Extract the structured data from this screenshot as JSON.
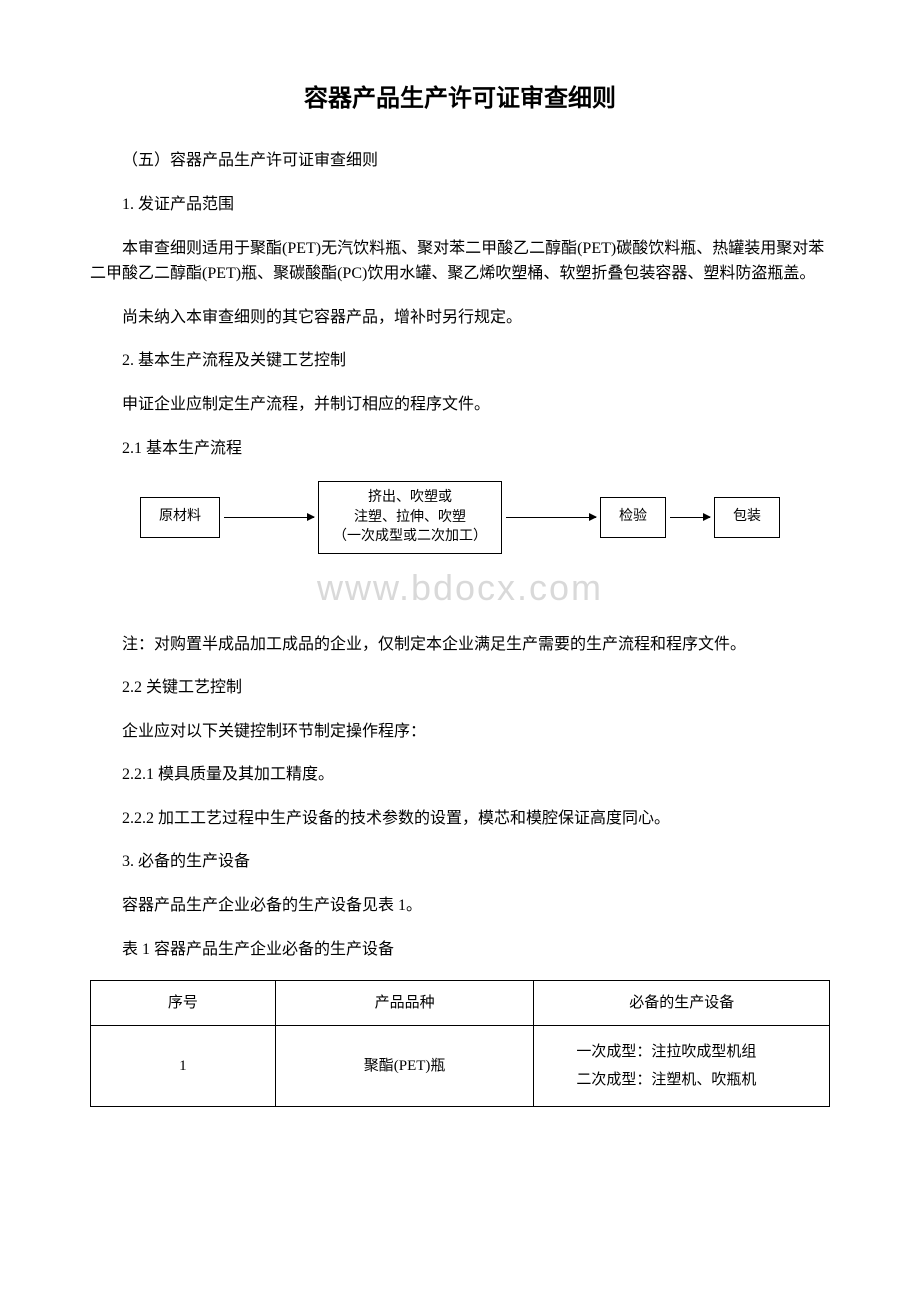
{
  "title": "容器产品生产许可证审查细则",
  "sections": {
    "s1": "（五）容器产品生产许可证审查细则",
    "s2": "1. 发证产品范围",
    "s3": "本审查细则适用于聚酯(PET)无汽饮料瓶、聚对苯二甲酸乙二醇酯(PET)碳酸饮料瓶、热罐装用聚对苯二甲酸乙二醇酯(PET)瓶、聚碳酸酯(PC)饮用水罐、聚乙烯吹塑桶、软塑折叠包装容器、塑料防盗瓶盖。",
    "s4": "尚未纳入本审查细则的其它容器产品，增补时另行规定。",
    "s5": "2. 基本生产流程及关键工艺控制",
    "s6": "申证企业应制定生产流程，并制订相应的程序文件。",
    "s7": "2.1 基本生产流程",
    "s8": "注：对购置半成品加工成品的企业，仅制定本企业满足生产需要的生产流程和程序文件。",
    "s9": "2.2 关键工艺控制",
    "s10": "企业应对以下关键控制环节制定操作程序：",
    "s11": "2.2.1 模具质量及其加工精度。",
    "s12": "2.2.2 加工工艺过程中生产设备的技术参数的设置，模芯和模腔保证高度同心。",
    "s13": "3. 必备的生产设备",
    "s14": "容器产品生产企业必备的生产设备见表 1。",
    "s15": "表 1 容器产品生产企业必备的生产设备"
  },
  "flowchart": {
    "b1": "原材料",
    "b2_l1": "挤出、吹塑或",
    "b2_l2": "注塑、拉伸、吹塑",
    "b2_l3": "（一次成型或二次加工）",
    "b3": "检验",
    "b4": "包装"
  },
  "watermark": "www.bdocx.com",
  "table": {
    "h1": "序号",
    "h2": "产品品种",
    "h3": "必备的生产设备",
    "r1c1": "1",
    "r1c2": "聚酯(PET)瓶",
    "r1c3a": "一次成型：注拉吹成型机组",
    "r1c3b": "二次成型：注塑机、吹瓶机"
  }
}
